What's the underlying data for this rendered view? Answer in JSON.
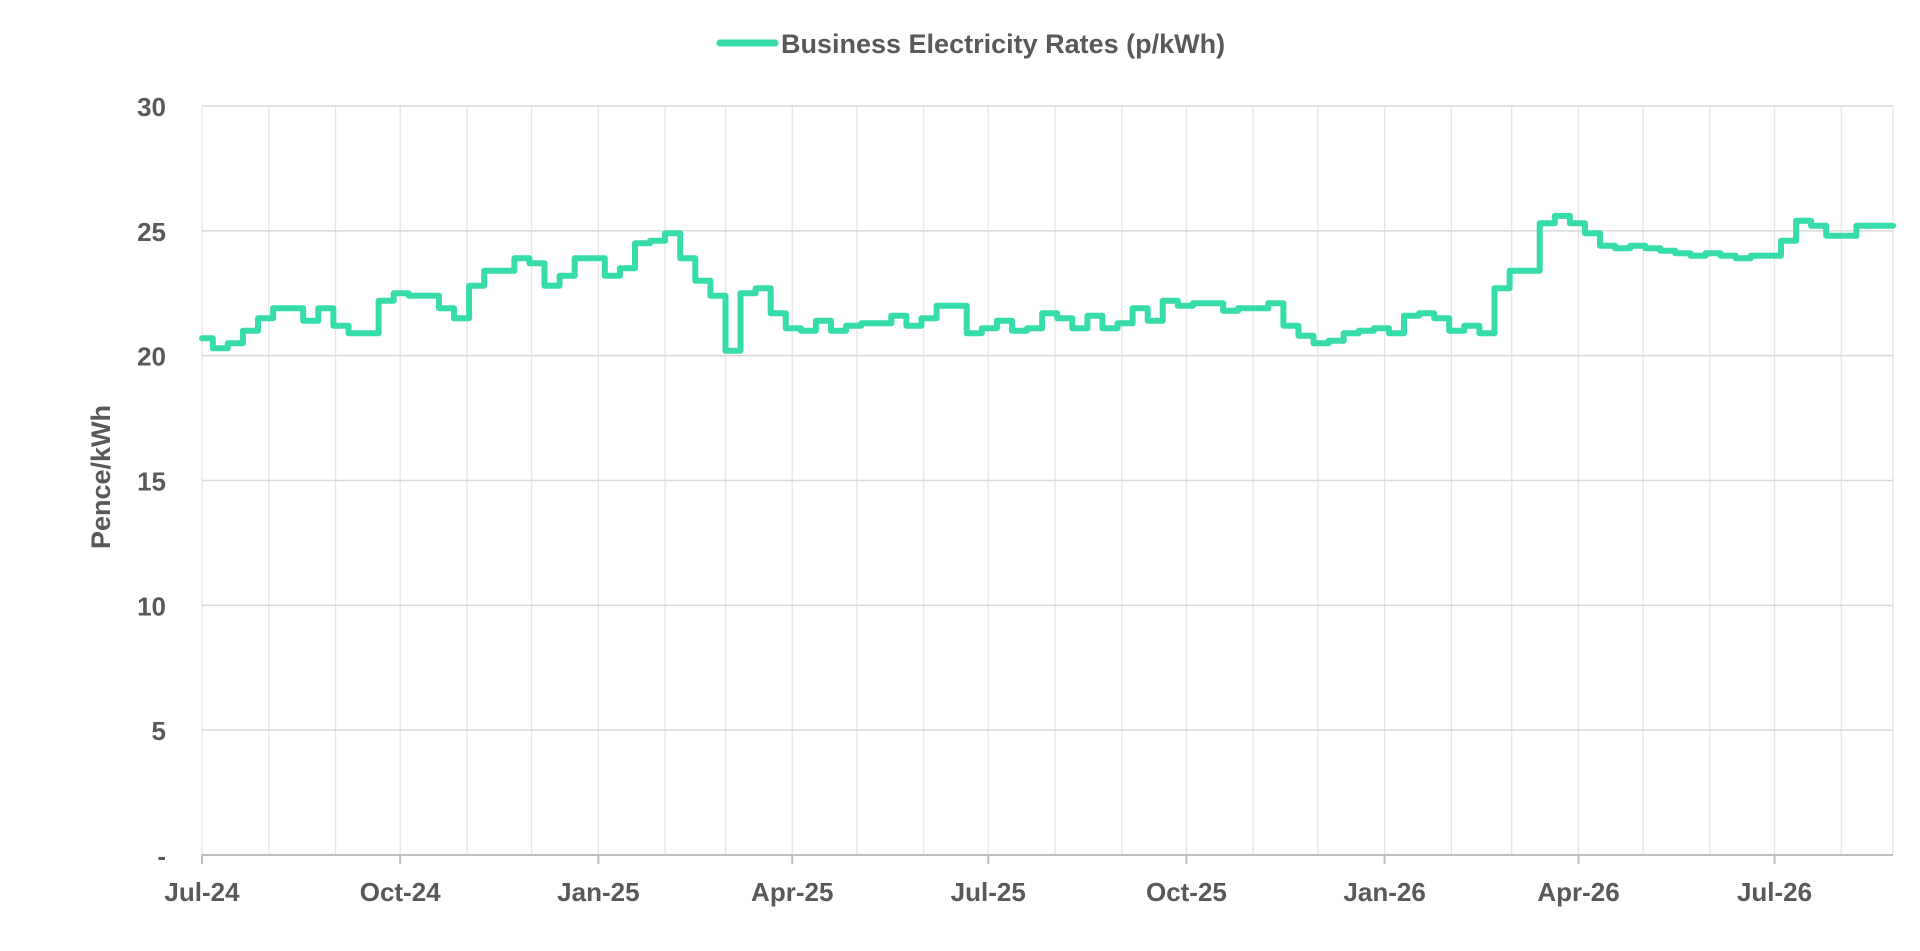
{
  "chart_data": {
    "type": "line",
    "title": "",
    "xlabel": "",
    "ylabel": "Pence/kWh",
    "legend": "top-center",
    "grid": true,
    "ylim": [
      0,
      30
    ],
    "yticks": [
      {
        "value": 0,
        "label": "-"
      },
      {
        "value": 5,
        "label": "5"
      },
      {
        "value": 10,
        "label": "10"
      },
      {
        "value": 15,
        "label": "15"
      },
      {
        "value": 20,
        "label": "20"
      },
      {
        "value": 25,
        "label": "25"
      },
      {
        "value": 30,
        "label": "30"
      }
    ],
    "xlim": [
      "2024-07-01",
      "2026-08-25"
    ],
    "xticks": [
      {
        "date": "2024-07-01",
        "label": "Jul-24"
      },
      {
        "date": "2024-10-01",
        "label": "Oct-24"
      },
      {
        "date": "2025-01-01",
        "label": "Jan-25"
      },
      {
        "date": "2025-04-01",
        "label": "Apr-25"
      },
      {
        "date": "2025-07-01",
        "label": "Jul-25"
      },
      {
        "date": "2025-10-01",
        "label": "Oct-25"
      },
      {
        "date": "2026-01-01",
        "label": "Jan-26"
      },
      {
        "date": "2026-04-01",
        "label": "Apr-26"
      },
      {
        "date": "2026-07-01",
        "label": "Jul-26"
      }
    ],
    "series": [
      {
        "name": "Business Electricity Rates (p/kWh)",
        "color": "#36dcaa",
        "step": true,
        "points": [
          [
            "2024-07-01",
            20.7
          ],
          [
            "2024-07-06",
            20.3
          ],
          [
            "2024-07-13",
            20.5
          ],
          [
            "2024-07-20",
            21.0
          ],
          [
            "2024-07-27",
            21.5
          ],
          [
            "2024-08-03",
            21.9
          ],
          [
            "2024-08-17",
            21.4
          ],
          [
            "2024-08-24",
            21.9
          ],
          [
            "2024-08-31",
            21.2
          ],
          [
            "2024-09-07",
            20.9
          ],
          [
            "2024-09-21",
            22.2
          ],
          [
            "2024-09-28",
            22.5
          ],
          [
            "2024-10-05",
            22.4
          ],
          [
            "2024-10-19",
            21.9
          ],
          [
            "2024-10-26",
            21.5
          ],
          [
            "2024-11-02",
            22.8
          ],
          [
            "2024-11-09",
            23.4
          ],
          [
            "2024-11-23",
            23.9
          ],
          [
            "2024-11-30",
            23.7
          ],
          [
            "2024-12-07",
            22.8
          ],
          [
            "2024-12-14",
            23.2
          ],
          [
            "2024-12-21",
            23.9
          ],
          [
            "2025-01-04",
            23.2
          ],
          [
            "2025-01-11",
            23.5
          ],
          [
            "2025-01-18",
            24.5
          ],
          [
            "2025-01-25",
            24.6
          ],
          [
            "2025-02-01",
            24.9
          ],
          [
            "2025-02-08",
            23.9
          ],
          [
            "2025-02-15",
            23.0
          ],
          [
            "2025-02-22",
            22.4
          ],
          [
            "2025-03-01",
            20.2
          ],
          [
            "2025-03-08",
            22.5
          ],
          [
            "2025-03-15",
            22.7
          ],
          [
            "2025-03-22",
            21.7
          ],
          [
            "2025-03-29",
            21.1
          ],
          [
            "2025-04-05",
            21.0
          ],
          [
            "2025-04-12",
            21.4
          ],
          [
            "2025-04-19",
            21.0
          ],
          [
            "2025-04-26",
            21.2
          ],
          [
            "2025-05-03",
            21.3
          ],
          [
            "2025-05-17",
            21.6
          ],
          [
            "2025-05-24",
            21.2
          ],
          [
            "2025-05-31",
            21.5
          ],
          [
            "2025-06-07",
            22.0
          ],
          [
            "2025-06-14",
            22.0
          ],
          [
            "2025-06-21",
            20.9
          ],
          [
            "2025-06-28",
            21.1
          ],
          [
            "2025-07-05",
            21.4
          ],
          [
            "2025-07-12",
            21.0
          ],
          [
            "2025-07-19",
            21.1
          ],
          [
            "2025-07-26",
            21.7
          ],
          [
            "2025-08-02",
            21.5
          ],
          [
            "2025-08-09",
            21.1
          ],
          [
            "2025-08-16",
            21.6
          ],
          [
            "2025-08-23",
            21.1
          ],
          [
            "2025-08-30",
            21.3
          ],
          [
            "2025-09-06",
            21.9
          ],
          [
            "2025-09-13",
            21.4
          ],
          [
            "2025-09-20",
            22.2
          ],
          [
            "2025-09-27",
            22.0
          ],
          [
            "2025-10-04",
            22.1
          ],
          [
            "2025-10-18",
            21.8
          ],
          [
            "2025-10-25",
            21.9
          ],
          [
            "2025-11-01",
            21.9
          ],
          [
            "2025-11-08",
            22.1
          ],
          [
            "2025-11-15",
            21.2
          ],
          [
            "2025-11-22",
            20.8
          ],
          [
            "2025-11-29",
            20.5
          ],
          [
            "2025-12-06",
            20.6
          ],
          [
            "2025-12-13",
            20.9
          ],
          [
            "2025-12-20",
            21.0
          ],
          [
            "2025-12-27",
            21.1
          ],
          [
            "2026-01-03",
            20.9
          ],
          [
            "2026-01-10",
            21.6
          ],
          [
            "2026-01-17",
            21.7
          ],
          [
            "2026-01-24",
            21.5
          ],
          [
            "2026-01-31",
            21.0
          ],
          [
            "2026-02-07",
            21.2
          ],
          [
            "2026-02-14",
            20.9
          ],
          [
            "2026-02-21",
            22.7
          ],
          [
            "2026-02-28",
            23.4
          ],
          [
            "2026-03-14",
            25.3
          ],
          [
            "2026-03-21",
            25.6
          ],
          [
            "2026-03-28",
            25.3
          ],
          [
            "2026-04-04",
            24.9
          ],
          [
            "2026-04-11",
            24.4
          ],
          [
            "2026-04-18",
            24.3
          ],
          [
            "2026-04-25",
            24.4
          ],
          [
            "2026-05-02",
            24.3
          ],
          [
            "2026-05-09",
            24.2
          ],
          [
            "2026-05-16",
            24.1
          ],
          [
            "2026-05-23",
            24.0
          ],
          [
            "2026-05-30",
            24.1
          ],
          [
            "2026-06-06",
            24.0
          ],
          [
            "2026-06-13",
            23.9
          ],
          [
            "2026-06-20",
            24.0
          ],
          [
            "2026-07-04",
            24.6
          ],
          [
            "2026-07-11",
            25.4
          ],
          [
            "2026-07-18",
            25.2
          ],
          [
            "2026-07-25",
            24.8
          ],
          [
            "2026-08-08",
            25.2
          ],
          [
            "2026-08-15",
            25.2
          ],
          [
            "2026-08-25",
            25.2
          ]
        ]
      }
    ]
  }
}
